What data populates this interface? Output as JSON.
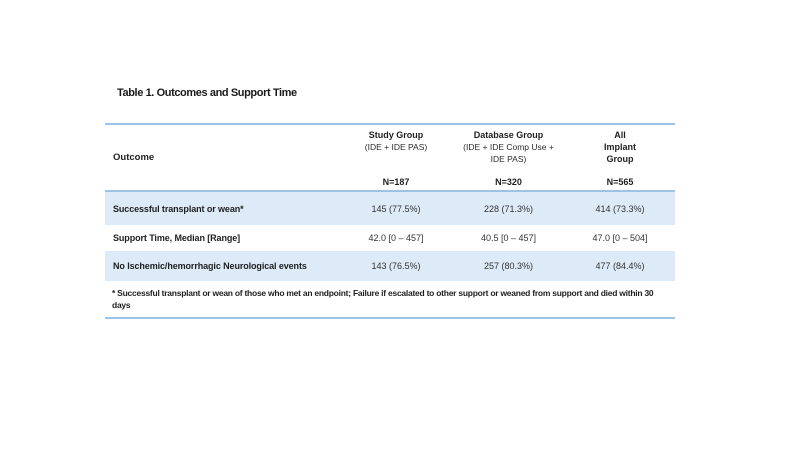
{
  "title": "Table 1. Outcomes and Support Time",
  "table": {
    "outcome_header": "Outcome",
    "columns": [
      {
        "title": "Study Group",
        "subtitle": "(IDE + IDE PAS)",
        "n": "N=187"
      },
      {
        "title": "Database Group",
        "subtitle": "(IDE + IDE Comp Use +\nIDE PAS)",
        "n": "N=320"
      },
      {
        "title": "All\nImplant\nGroup",
        "subtitle": "",
        "n": "N=565"
      }
    ],
    "rows": [
      {
        "label": "Successful transplant or wean*",
        "values": [
          "145 (77.5%)",
          "228 (71.3%)",
          "414 (73.3%)"
        ]
      },
      {
        "label": "Support Time, Median [Range]",
        "values": [
          "42.0 [0 – 457]",
          "40.5 [0 – 457]",
          "47.0 [0 – 504]"
        ]
      },
      {
        "label": "No Ischemic/hemorrhagic Neurological events",
        "values": [
          "143 (76.5%)",
          "257 (80.3%)",
          "477 (84.4%)"
        ]
      }
    ],
    "footnote": "* Successful transplant or wean of those who met an endpoint; Failure if escalated to other support or weaned from support and died within 30\ndays"
  },
  "colors": {
    "rule": "#9cc2e5",
    "row_shade": "#dcebf7",
    "text": "#1f1f1f"
  }
}
